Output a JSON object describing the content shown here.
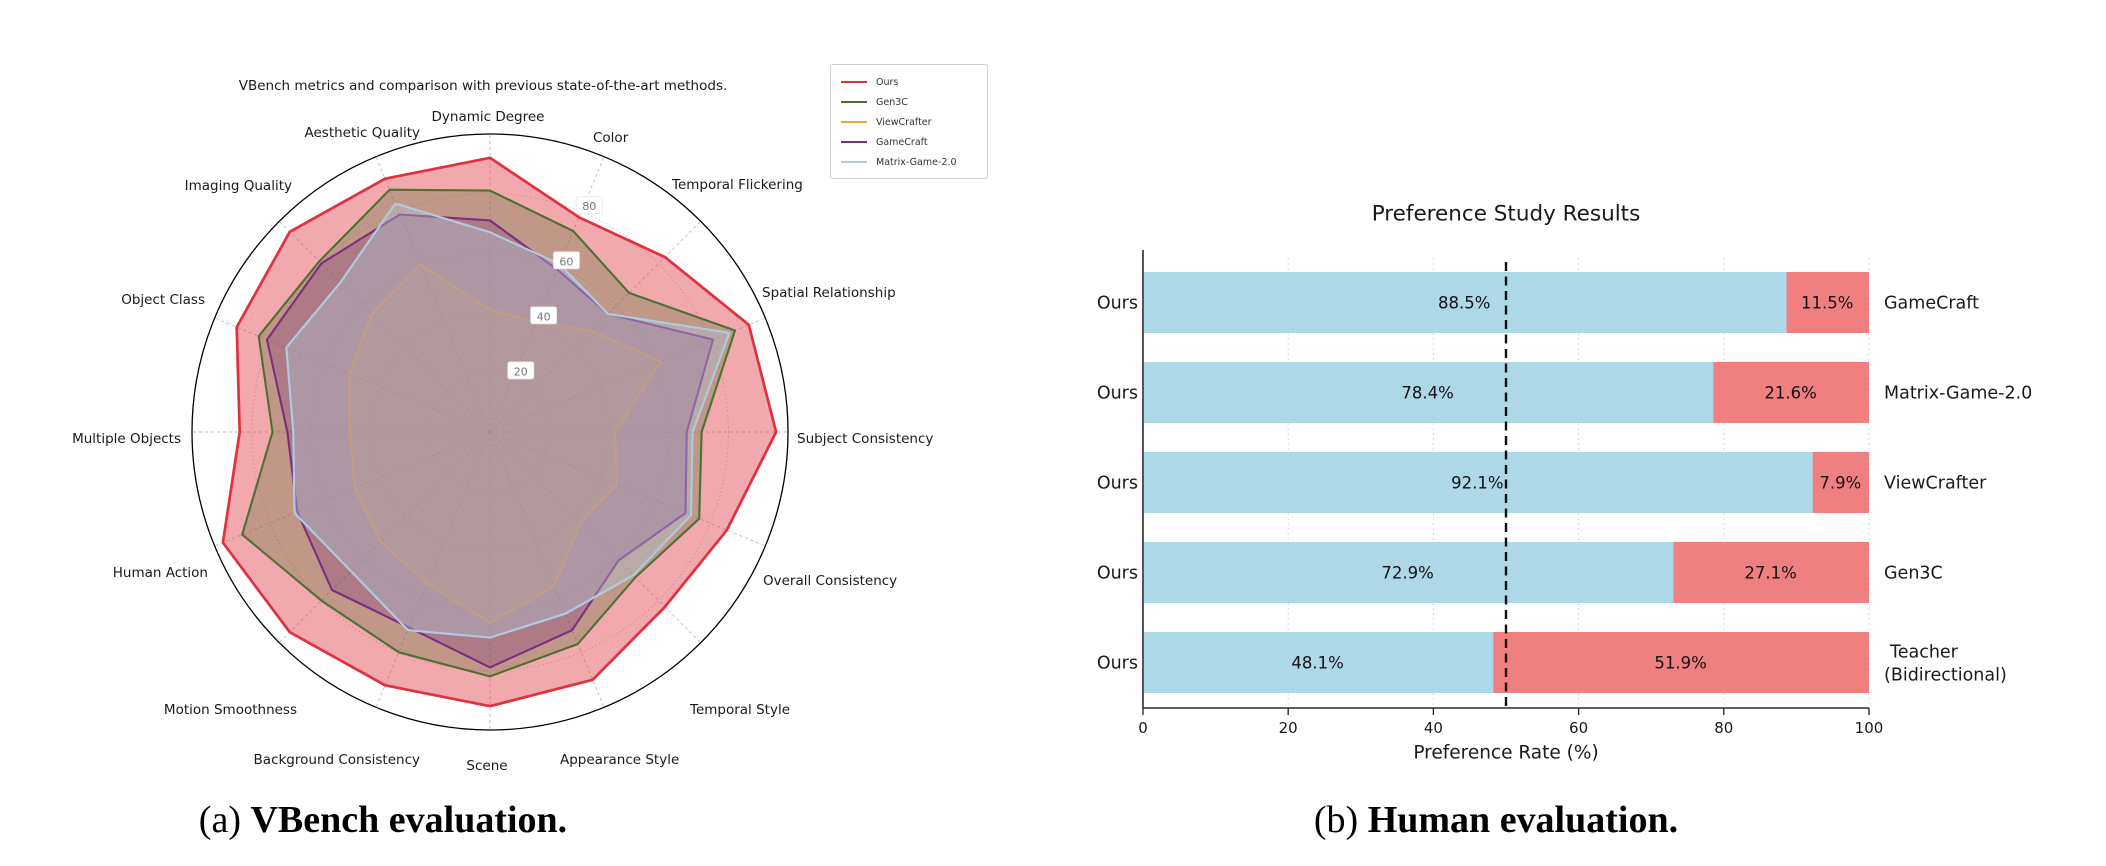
{
  "page": {
    "background": "#ffffff"
  },
  "captions": {
    "a": {
      "index": "(a) ",
      "text": "VBench evaluation."
    },
    "b": {
      "index": "(b) ",
      "text": "Human evaluation."
    }
  },
  "chart_data": [
    {
      "type": "radar",
      "title": "VBench metrics and comparison with previous state-of-the-art methods.",
      "axes": [
        "Dynamic Degree",
        "Color",
        "Temporal Flickering",
        "Spatial Relationship",
        "Subject Consistency",
        "Overall Consistency",
        "Temporal Style",
        "Appearance Style",
        "Scene",
        "Background Consistency",
        "Motion Smoothness",
        "Human Action",
        "Multiple Objects",
        "Object Class",
        "Imaging Quality",
        "Aesthetic Quality"
      ],
      "rlim": [
        0,
        100
      ],
      "rticks": [
        "20",
        "40",
        "60",
        "80"
      ],
      "grid": "on",
      "legend_position": "upper right",
      "series": [
        {
          "name": "Ours",
          "color": "#E0313F",
          "fill_alpha": 0.42,
          "values": [
            92,
            78,
            83,
            94,
            96,
            86,
            83,
            90,
            92,
            92,
            95,
            97,
            84,
            92,
            95,
            92
          ]
        },
        {
          "name": "Gen3C",
          "color": "#4E7032",
          "fill_alpha": 0.3,
          "values": [
            81,
            73,
            66,
            89,
            71,
            76,
            69,
            77,
            82,
            80,
            80,
            90,
            73,
            84,
            81,
            88
          ]
        },
        {
          "name": "ViewCrafter",
          "color": "#E7A73C",
          "fill_alpha": 0.22,
          "values": [
            41,
            40,
            48,
            62,
            42,
            46,
            43,
            56,
            64,
            55,
            52,
            49,
            47,
            51,
            56,
            61
          ]
        },
        {
          "name": "GameCraft",
          "color": "#7D2E82",
          "fill_alpha": 0.28,
          "values": [
            71,
            59,
            56,
            81,
            66,
            71,
            61,
            72,
            79,
            71,
            75,
            70,
            68,
            81,
            80,
            79
          ]
        },
        {
          "name": "Matrix-Game-2.0",
          "color": "#AECBDF",
          "fill_alpha": 0.36,
          "values": [
            67,
            61,
            56,
            87,
            68,
            73,
            68,
            66,
            69,
            72,
            66,
            71,
            66,
            74,
            71,
            83
          ]
        }
      ]
    },
    {
      "type": "bar",
      "title": "Preference Study Results",
      "xlabel": "Preference Rate (%)",
      "xlim": [
        0,
        100
      ],
      "xticks": [
        "0",
        "20",
        "40",
        "60",
        "80",
        "100"
      ],
      "row_label": "Ours",
      "reference_line_x": 50,
      "bar_colors": {
        "ours": "#ADD8E6",
        "competitor": "#F08080"
      },
      "rows": [
        {
          "competitor": "GameCraft",
          "competitor_lines": [
            "GameCraft"
          ],
          "ours_value": 88.5,
          "competitor_value": 11.5,
          "ours_label": "88.5%",
          "competitor_label": "11.5%"
        },
        {
          "competitor": "Matrix-Game-2.0",
          "competitor_lines": [
            "Matrix-Game-2.0"
          ],
          "ours_value": 78.4,
          "competitor_value": 21.6,
          "ours_label": "78.4%",
          "competitor_label": "21.6%"
        },
        {
          "competitor": "ViewCrafter",
          "competitor_lines": [
            "ViewCrafter"
          ],
          "ours_value": 92.1,
          "competitor_value": 7.9,
          "ours_label": "92.1%",
          "competitor_label": "7.9%"
        },
        {
          "competitor": "Gen3C",
          "competitor_lines": [
            "Gen3C"
          ],
          "ours_value": 72.9,
          "competitor_value": 27.1,
          "ours_label": "72.9%",
          "competitor_label": "27.1%"
        },
        {
          "competitor": "Teacher (Bidirectional)",
          "competitor_lines": [
            "Teacher",
            "(Bidirectional)"
          ],
          "ours_value": 48.1,
          "competitor_value": 51.9,
          "ours_label": "48.1%",
          "competitor_label": "51.9%"
        }
      ]
    }
  ]
}
